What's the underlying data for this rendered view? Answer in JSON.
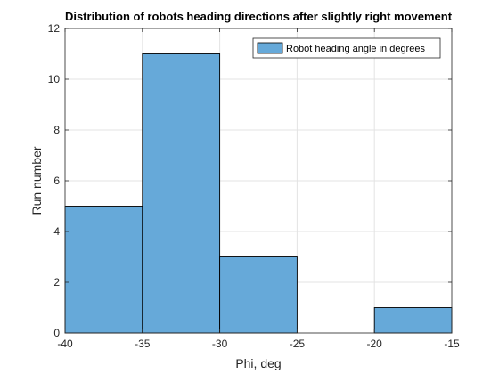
{
  "chart_data": {
    "type": "histogram",
    "title": "Distribution of robots heading directions after slightly right movement",
    "xlabel": "Phi, deg",
    "ylabel": "Run number",
    "xlim": [
      -40,
      -15
    ],
    "ylim": [
      0,
      12
    ],
    "xticks": [
      -40,
      -35,
      -30,
      -25,
      -20,
      -15
    ],
    "yticks": [
      0,
      2,
      4,
      6,
      8,
      10,
      12
    ],
    "grid": true,
    "legend": {
      "position": "top-right",
      "entries": [
        "Robot heading angle in degrees"
      ]
    },
    "series": [
      {
        "name": "Robot heading angle in degrees",
        "color": "#66a9d9",
        "edge_color": "#000000",
        "bins": [
          {
            "x0": -40,
            "x1": -35,
            "count": 5
          },
          {
            "x0": -35,
            "x1": -30,
            "count": 11
          },
          {
            "x0": -30,
            "x1": -25,
            "count": 3
          },
          {
            "x0": -25,
            "x1": -20,
            "count": 0
          },
          {
            "x0": -20,
            "x1": -15,
            "count": 1
          }
        ]
      }
    ]
  }
}
